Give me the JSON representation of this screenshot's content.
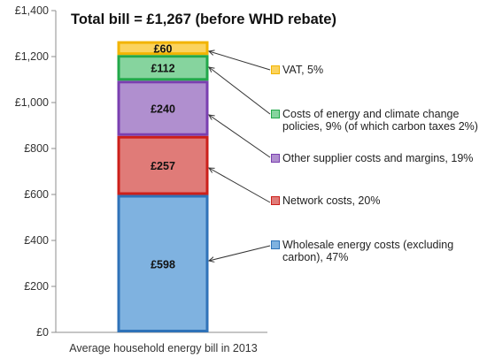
{
  "chart_data": {
    "type": "bar",
    "stacked": true,
    "title": "Total bill = £1,267 (before WHD rebate)",
    "categories": [
      "Average household energy bill in 2013"
    ],
    "y_ticks": [
      "£0",
      "£200",
      "£400",
      "£600",
      "£800",
      "£1,000",
      "£1,200",
      "£1,400"
    ],
    "ylim": [
      0,
      1400
    ],
    "grid": false,
    "legend_position": "right",
    "series": [
      {
        "name": "Wholesale energy costs (excluding carbon), 47%",
        "value": 598,
        "label": "£598",
        "fill": "#7fb2e0",
        "stroke": "#2f72b8"
      },
      {
        "name": "Network costs, 20%",
        "value": 257,
        "label": "£257",
        "fill": "#e07b78",
        "stroke": "#cc1f1a"
      },
      {
        "name": "Other supplier costs and margins, 19%",
        "value": 240,
        "label": "£240",
        "fill": "#b08fcf",
        "stroke": "#7a3fb0"
      },
      {
        "name": "Costs of energy and climate change policies, 9% (of which carbon taxes 2%)",
        "value": 112,
        "label": "£112",
        "fill": "#86d49e",
        "stroke": "#22a84a"
      },
      {
        "name": "VAT, 5%",
        "value": 60,
        "label": "£60",
        "fill": "#fbd35e",
        "stroke": "#f2b400"
      }
    ]
  }
}
